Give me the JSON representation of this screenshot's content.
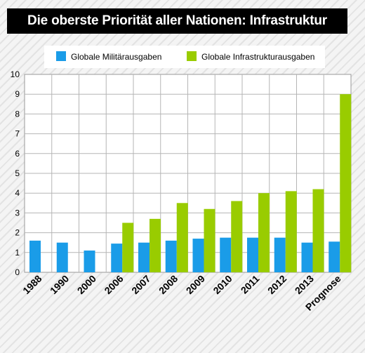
{
  "chart_data": {
    "type": "bar",
    "title": "Die oberste Priorität aller Nationen: Infrastruktur",
    "xlabel": "",
    "ylabel": "",
    "ylim": [
      0,
      10
    ],
    "yticks": [
      0,
      1,
      2,
      3,
      4,
      5,
      6,
      7,
      8,
      9,
      10
    ],
    "grid": true,
    "legend_position": "top",
    "categories": [
      "1988",
      "1990",
      "2000",
      "2006",
      "2007",
      "2008",
      "2009",
      "2010",
      "2011",
      "2012",
      "2013",
      "Prognose"
    ],
    "series": [
      {
        "name": "Globale Militärausgaben",
        "color": "#1a9ce8",
        "values": [
          1.6,
          1.5,
          1.1,
          1.45,
          1.5,
          1.6,
          1.7,
          1.75,
          1.75,
          1.75,
          1.5,
          1.55
        ]
      },
      {
        "name": "Globale Infrastrukturausgaben",
        "color": "#99cc00",
        "values": [
          null,
          null,
          null,
          2.5,
          2.7,
          3.5,
          3.2,
          3.6,
          4.0,
          4.1,
          4.2,
          9.0
        ]
      }
    ]
  }
}
